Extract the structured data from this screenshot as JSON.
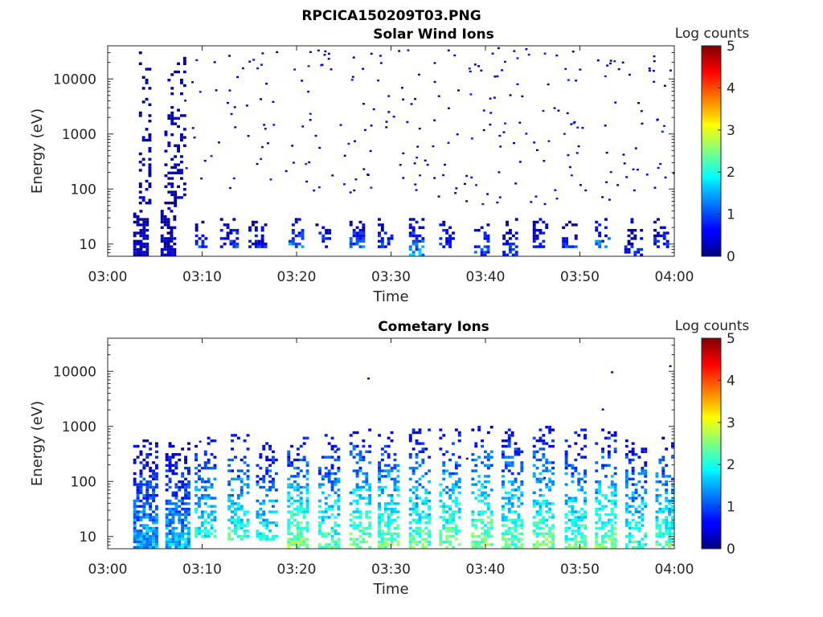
{
  "figure": {
    "title": "RPCICA150209T03.PNG"
  },
  "chart_data": [
    {
      "type": "heatmap",
      "title": "Solar Wind Ions",
      "xlabel": "Time",
      "ylabel": "Energy (eV)",
      "x_ticks": [
        "03:00",
        "03:10",
        "03:20",
        "03:30",
        "03:40",
        "03:50",
        "04:00"
      ],
      "xlim_minutes": [
        0,
        60
      ],
      "y_scale": "log",
      "ylim": [
        6,
        40000
      ],
      "y_ticks": [
        {
          "value": 10,
          "label": "10"
        },
        {
          "value": 100,
          "label": "100"
        },
        {
          "value": 1000,
          "label": "1000"
        },
        {
          "value": 10000,
          "label": "10000"
        }
      ],
      "colorbar": {
        "label": "Log counts",
        "range": [
          0,
          5
        ],
        "ticks": [
          "0",
          "1",
          "2",
          "3",
          "4",
          "5"
        ],
        "colormap": "jet"
      },
      "grid": false,
      "bursts": [
        {
          "t": 3.5,
          "dt": 1.6,
          "emin": 6,
          "emax": 50,
          "level": 0.3,
          "density": 1.0
        },
        {
          "t": 3.8,
          "dt": 1.0,
          "emin": 50,
          "emax": 30000,
          "level": 0.2,
          "density": 0.35
        },
        {
          "t": 6.4,
          "dt": 1.6,
          "emin": 6,
          "emax": 40,
          "level": 0.3,
          "density": 0.9
        },
        {
          "t": 7.0,
          "dt": 2.0,
          "emin": 40,
          "emax": 30000,
          "level": 0.2,
          "density": 0.35
        },
        {
          "t": 9.9,
          "dt": 1.3,
          "emin": 8,
          "emax": 30,
          "level": 0.8,
          "density": 0.6
        },
        {
          "t": 12.8,
          "dt": 1.8,
          "emin": 8,
          "emax": 30,
          "level": 0.9,
          "density": 0.6
        },
        {
          "t": 15.8,
          "dt": 1.8,
          "emin": 8,
          "emax": 30,
          "level": 0.7,
          "density": 0.6
        },
        {
          "t": 19.9,
          "dt": 1.5,
          "emin": 8,
          "emax": 30,
          "level": 1.3,
          "density": 0.7
        },
        {
          "t": 22.9,
          "dt": 1.8,
          "emin": 8,
          "emax": 30,
          "level": 0.8,
          "density": 0.6
        },
        {
          "t": 26.4,
          "dt": 1.6,
          "emin": 8,
          "emax": 30,
          "level": 1.1,
          "density": 0.7
        },
        {
          "t": 29.4,
          "dt": 1.6,
          "emin": 8,
          "emax": 30,
          "level": 0.9,
          "density": 0.6
        },
        {
          "t": 32.7,
          "dt": 1.6,
          "emin": 6,
          "emax": 30,
          "level": 1.4,
          "density": 0.7
        },
        {
          "t": 35.9,
          "dt": 1.6,
          "emin": 8,
          "emax": 30,
          "level": 0.9,
          "density": 0.6
        },
        {
          "t": 39.6,
          "dt": 1.6,
          "emin": 6,
          "emax": 30,
          "level": 1.0,
          "density": 0.6
        },
        {
          "t": 42.6,
          "dt": 1.6,
          "emin": 6,
          "emax": 30,
          "level": 0.8,
          "density": 0.6
        },
        {
          "t": 45.8,
          "dt": 1.6,
          "emin": 8,
          "emax": 30,
          "level": 0.7,
          "density": 0.6
        },
        {
          "t": 48.9,
          "dt": 1.6,
          "emin": 8,
          "emax": 30,
          "level": 0.8,
          "density": 0.6
        },
        {
          "t": 52.4,
          "dt": 1.6,
          "emin": 8,
          "emax": 30,
          "level": 1.3,
          "density": 0.6
        },
        {
          "t": 55.6,
          "dt": 1.8,
          "emin": 6,
          "emax": 30,
          "level": 0.6,
          "density": 0.6
        },
        {
          "t": 58.6,
          "dt": 1.6,
          "emin": 8,
          "emax": 30,
          "level": 0.7,
          "density": 0.6
        }
      ]
    },
    {
      "type": "heatmap",
      "title": "Cometary Ions",
      "xlabel": "Time",
      "ylabel": "Energy (eV)",
      "x_ticks": [
        "03:00",
        "03:10",
        "03:20",
        "03:30",
        "03:40",
        "03:50",
        "04:00"
      ],
      "xlim_minutes": [
        0,
        60
      ],
      "y_scale": "log",
      "ylim": [
        6,
        40000
      ],
      "y_ticks": [
        {
          "value": 10,
          "label": "10"
        },
        {
          "value": 100,
          "label": "100"
        },
        {
          "value": 1000,
          "label": "1000"
        },
        {
          "value": 10000,
          "label": "10000"
        }
      ],
      "colorbar": {
        "label": "Log counts",
        "range": [
          0,
          5
        ],
        "ticks": [
          "0",
          "1",
          "2",
          "3",
          "4",
          "5"
        ],
        "colormap": "jet"
      },
      "grid": false,
      "bursts": [
        {
          "t": 3.9,
          "dt": 2.4,
          "emin": 6,
          "emax": 600,
          "level": 1.5,
          "density": 0.95
        },
        {
          "t": 7.3,
          "dt": 2.4,
          "emin": 6,
          "emax": 500,
          "level": 1.6,
          "density": 0.9
        },
        {
          "t": 10.2,
          "dt": 2.0,
          "emin": 10,
          "emax": 800,
          "level": 2.0,
          "density": 0.6
        },
        {
          "t": 13.7,
          "dt": 2.0,
          "emin": 8,
          "emax": 800,
          "level": 2.2,
          "density": 0.6
        },
        {
          "t": 16.7,
          "dt": 2.0,
          "emin": 8,
          "emax": 500,
          "level": 2.0,
          "density": 0.6
        },
        {
          "t": 20.0,
          "dt": 2.0,
          "emin": 6,
          "emax": 700,
          "level": 2.6,
          "density": 0.65
        },
        {
          "t": 23.3,
          "dt": 2.0,
          "emin": 6,
          "emax": 700,
          "level": 2.3,
          "density": 0.6
        },
        {
          "t": 26.6,
          "dt": 2.0,
          "emin": 6,
          "emax": 900,
          "level": 2.5,
          "density": 0.65
        },
        {
          "t": 29.6,
          "dt": 2.0,
          "emin": 6,
          "emax": 900,
          "level": 2.5,
          "density": 0.65
        },
        {
          "t": 32.9,
          "dt": 2.0,
          "emin": 6,
          "emax": 900,
          "level": 2.4,
          "density": 0.65
        },
        {
          "t": 36.1,
          "dt": 2.0,
          "emin": 6,
          "emax": 900,
          "level": 2.5,
          "density": 0.65
        },
        {
          "t": 39.5,
          "dt": 2.0,
          "emin": 6,
          "emax": 1000,
          "level": 2.6,
          "density": 0.65
        },
        {
          "t": 42.7,
          "dt": 2.0,
          "emin": 6,
          "emax": 900,
          "level": 2.4,
          "density": 0.65
        },
        {
          "t": 46.0,
          "dt": 2.0,
          "emin": 6,
          "emax": 1000,
          "level": 2.5,
          "density": 0.65
        },
        {
          "t": 49.4,
          "dt": 2.0,
          "emin": 6,
          "emax": 900,
          "level": 2.3,
          "density": 0.65
        },
        {
          "t": 52.6,
          "dt": 2.0,
          "emin": 6,
          "emax": 900,
          "level": 2.5,
          "density": 0.65
        },
        {
          "t": 55.8,
          "dt": 2.0,
          "emin": 6,
          "emax": 600,
          "level": 2.2,
          "density": 0.6
        },
        {
          "t": 58.9,
          "dt": 1.8,
          "emin": 6,
          "emax": 700,
          "level": 2.3,
          "density": 0.6
        }
      ]
    }
  ]
}
